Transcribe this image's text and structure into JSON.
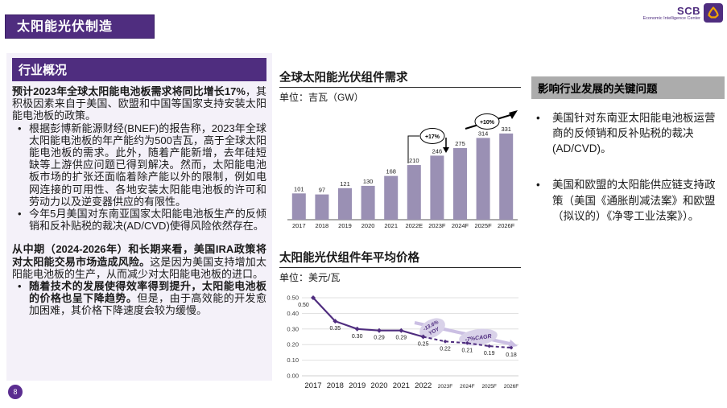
{
  "header": {
    "title": "太阳能光伏制造"
  },
  "logo": {
    "scb": "SCB",
    "subtitle": "Economic Intelligence Center"
  },
  "overview": {
    "header": "行业概况",
    "p1_bold": "预计2023年全球太阳能电池板需求将同比增长17%",
    "p1_rest": "，其积极因素来自于美国、欧盟和中国等国家支持安装太阳能电池板的政策。",
    "bullet1": "根据彭博新能源财经(BNEF)的报告称，2023年全球太阳能电池板的年产能约为500吉瓦，高于全球太阳能电池板的需求。此外，随着产能新增，去年硅短缺等上游供应问题已得到解决。然而，太阳能电池板市场的扩张还面临着除产能以外的限制，例如电网连接的可用性、各地安装太阳能电池板的许可和劳动力以及逆变器供应的有限性。",
    "bullet2": "今年5月美国对东南亚国家太阳能电池板生产的反倾销和反补贴税的裁决(AD/CVD)使得风险依然存在。",
    "p2_bold": "从中期（2024-2026年）和长期来看，美国IRA政策将对太阳能交易市场造成风险。",
    "p2_rest": "这是因为美国支持增加太阳能电池板的生产，从而减少对太阳能电池板的进口。",
    "bullet3_bold": "随着技术的发展使得效率得到提升，太阳能电池板的价格也呈下降趋势。",
    "bullet3_rest": "但是，由于高效能的开发愈加困难，其价格下降速度会较为缓慢。"
  },
  "key_issues": {
    "header": "影响行业发展的关键问题",
    "bullet1": "美国针对东南亚太阳能电池板运营商的反倾销和反补贴税的裁决(AD/CVD)。",
    "bullet2": "美国和欧盟的太阳能供应链支持政策（美国《通胀削减法案》和欧盟（拟议的）《净零工业法案》）。"
  },
  "page_number": "8",
  "colors": {
    "brand_purple": "#4F2D7F",
    "bar_fill": "#9A90B4",
    "annotation_fill": "#D9D2E9",
    "annotation_arrow": "#CBBFE3",
    "header_gray": "#ACACAC",
    "panel_bg": "#F4F1F9",
    "logo_gold": "#F0A500"
  },
  "chart_data": [
    {
      "type": "bar",
      "title": "全球太阳能光伏组件需求",
      "subtitle": "单位：吉瓦（GW）",
      "categories": [
        "2017",
        "2018",
        "2019",
        "2020",
        "2021",
        "2022E",
        "2023F",
        "2024F",
        "2025F",
        "2026F"
      ],
      "values": [
        101,
        97,
        121,
        130,
        168,
        210,
        246,
        275,
        314,
        331
      ],
      "annotations": [
        [
          "+17%"
        ],
        [
          "+10%"
        ]
      ],
      "ylim": [
        0,
        340
      ],
      "grid": false,
      "legend": "none",
      "bar_color": "#9A90B4"
    },
    {
      "type": "line",
      "title": "太阳能光伏组件年平均价格",
      "subtitle": "单位：美元/瓦",
      "categories": [
        "2017",
        "2018",
        "2019",
        "2020",
        "2021",
        "2022",
        "2023F",
        "2024F",
        "2025F",
        "2026F"
      ],
      "values": [
        0.5,
        0.35,
        0.3,
        0.29,
        0.29,
        0.25,
        0.22,
        0.21,
        0.19,
        0.18
      ],
      "solid_through_index": 5,
      "annotations": [
        [
          "-13.6%",
          "YOY"
        ],
        [
          "-7%CAGR"
        ]
      ],
      "ylim": [
        0,
        0.5
      ],
      "yticks": [
        0.0,
        0.1,
        0.2,
        0.3,
        0.4,
        0.5
      ],
      "grid": true,
      "legend": "none",
      "line_color": "#4F2D7F"
    }
  ]
}
